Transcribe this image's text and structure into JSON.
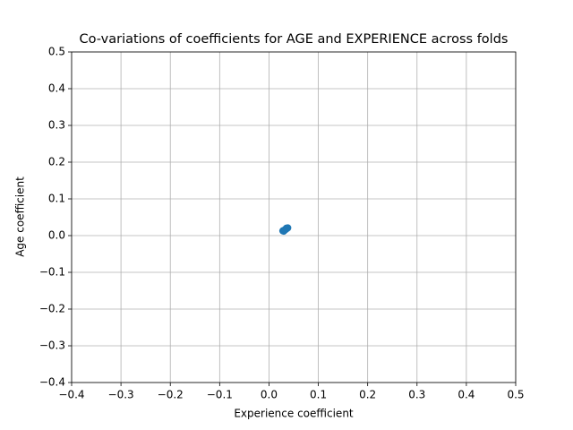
{
  "chart_data": {
    "type": "scatter",
    "title": "Co-variations of coefficients for AGE and EXPERIENCE across folds",
    "x_label": "Experience coefficient",
    "y_label": "Age coefficient",
    "series": [
      {
        "color": "#1f77b4",
        "x": [
          0.028,
          0.031,
          0.034,
          0.036,
          0.038,
          0.03,
          0.033,
          0.035
        ],
        "values": [
          0.013,
          0.015,
          0.017,
          0.019,
          0.021,
          0.012,
          0.016,
          0.02
        ]
      }
    ],
    "xlim": [
      -0.4,
      0.5
    ],
    "xticks": [
      {
        "value": -0.4,
        "label": "−0.4"
      },
      {
        "value": -0.3,
        "label": "−0.3"
      },
      {
        "value": -0.2,
        "label": "−0.2"
      },
      {
        "value": -0.1,
        "label": "−0.1"
      },
      {
        "value": 0,
        "label": "0.0"
      },
      0.1,
      0.2,
      0.3,
      0.4,
      0.5
    ],
    "ylim": [
      -0.4,
      0.5
    ],
    "yticks": [
      {
        "value": -0.4,
        "label": "−0.4"
      },
      {
        "value": -0.3,
        "label": "−0.3"
      },
      {
        "value": -0.2,
        "label": "−0.2"
      },
      {
        "value": -0.1,
        "label": "−0.1"
      },
      {
        "value": 0,
        "label": "0.0"
      },
      0.1,
      0.2,
      0.3,
      0.4,
      0.5
    ],
    "grid": true
  }
}
